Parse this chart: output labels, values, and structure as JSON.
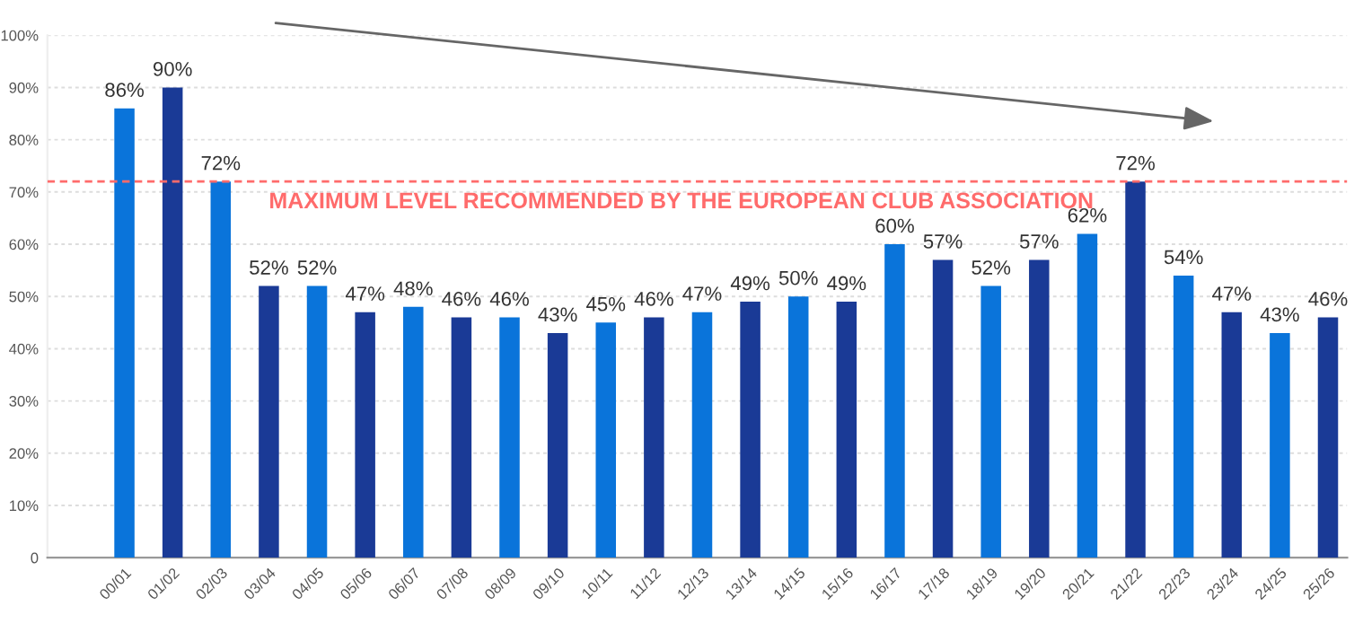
{
  "chart_data": {
    "type": "bar",
    "categories": [
      "00/01",
      "01/02",
      "02/03",
      "03/04",
      "04/05",
      "05/06",
      "06/07",
      "07/08",
      "08/09",
      "09/10",
      "10/11",
      "11/12",
      "12/13",
      "13/14",
      "14/15",
      "15/16",
      "16/17",
      "17/18",
      "18/19",
      "19/20",
      "20/21",
      "21/22",
      "22/23",
      "23/24",
      "24/25",
      "25/26"
    ],
    "values": [
      86,
      90,
      72,
      52,
      52,
      47,
      48,
      46,
      46,
      43,
      45,
      46,
      47,
      49,
      50,
      49,
      60,
      57,
      52,
      57,
      62,
      72,
      54,
      47,
      43,
      46
    ],
    "value_labels": [
      "86%",
      "90%",
      "72%",
      "52%",
      "52%",
      "47%",
      "48%",
      "46%",
      "46%",
      "43%",
      "45%",
      "46%",
      "47%",
      "49%",
      "50%",
      "49%",
      "60%",
      "57%",
      "52%",
      "57%",
      "62%",
      "72%",
      "54%",
      "47%",
      "43%",
      "46%"
    ],
    "colors": [
      "#0a74da",
      "#1a3a96",
      "#0a74da",
      "#1a3a96",
      "#0a74da",
      "#1a3a96",
      "#0a74da",
      "#1a3a96",
      "#0a74da",
      "#1a3a96",
      "#0a74da",
      "#1a3a96",
      "#0a74da",
      "#1a3a96",
      "#0a74da",
      "#1a3a96",
      "#0a74da",
      "#1a3a96",
      "#0a74da",
      "#1a3a96",
      "#0a74da",
      "#1a3a96",
      "#0a74da",
      "#1a3a96",
      "#0a74da",
      "#1a3a96"
    ],
    "ylim": [
      0,
      100
    ],
    "yticks": [
      0,
      {
        "value": 10,
        "label": "10%"
      },
      {
        "value": 20,
        "label": "20%"
      },
      {
        "value": 30,
        "label": "30%"
      },
      {
        "value": 40,
        "label": "40%"
      },
      {
        "value": 50,
        "label": "50%"
      },
      {
        "value": 60,
        "label": "60%"
      },
      {
        "value": 70,
        "label": "70%"
      },
      {
        "value": 80,
        "label": "80%"
      },
      {
        "value": 90,
        "label": "90%"
      },
      {
        "value": 100,
        "label": "100%"
      }
    ],
    "ref_lines": [
      {
        "axis": "y",
        "value": 72,
        "label": "MAXIMUM LEVEL RECOMMENDED BY THE EUROPEAN CLUB ASSOCIATION",
        "color": "#ff6b6b",
        "line_style": "dashed"
      }
    ],
    "grid": "y"
  }
}
